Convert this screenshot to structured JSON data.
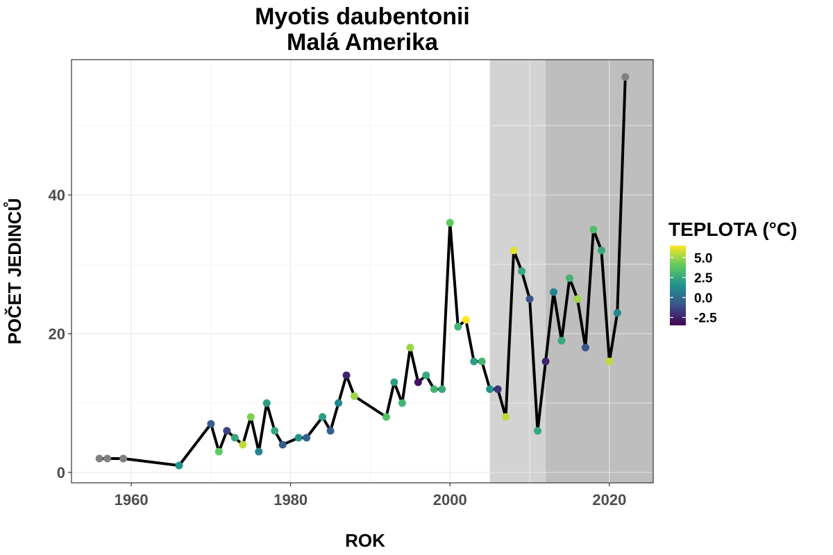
{
  "chart_data": {
    "type": "line",
    "title": "Myotis daubentonii",
    "subtitle": "Malá Amerika",
    "xlabel": "ROK",
    "ylabel": "POČET JEDINCŮ",
    "xlim": [
      1952.5,
      2025.5
    ],
    "ylim": [
      -1.5,
      59.5
    ],
    "x_ticks": [
      1960,
      1980,
      2000,
      2020
    ],
    "x_tick_labels": [
      "1960",
      "1980",
      "2000",
      "2020"
    ],
    "y_ticks": [
      0,
      20,
      40
    ],
    "y_tick_labels": [
      "0",
      "20",
      "40"
    ],
    "grid": true,
    "shaded_periods": [
      {
        "from": 2005,
        "to": 2012,
        "color": "#d3d3d3"
      },
      {
        "from": 2012,
        "to": 2025.5,
        "color": "#bebebe"
      }
    ],
    "line_color": "#000000",
    "missing_color": "#808080",
    "legend": {
      "title": "TEPLOTA (°C)",
      "placement": "right",
      "range": [
        -3.5,
        6.5
      ],
      "ticks": [
        5.0,
        2.5,
        0.0,
        -2.5
      ],
      "tick_labels": [
        "5.0",
        "2.5",
        "0.0",
        "-2.5"
      ],
      "colors": [
        "#440154",
        "#3b528b",
        "#21918c",
        "#5ec962",
        "#fde725"
      ]
    },
    "points": [
      {
        "x": 1956,
        "y": 2,
        "t": null
      },
      {
        "x": 1957,
        "y": 2,
        "t": null
      },
      {
        "x": 1959,
        "y": 2,
        "t": null
      },
      {
        "x": 1966,
        "y": 1,
        "t": 1.5
      },
      {
        "x": 1970,
        "y": 7,
        "t": -0.5
      },
      {
        "x": 1971,
        "y": 3,
        "t": 4.0
      },
      {
        "x": 1972,
        "y": 6,
        "t": -1.5
      },
      {
        "x": 1973,
        "y": 5,
        "t": 2.5
      },
      {
        "x": 1974,
        "y": 4,
        "t": 5.5
      },
      {
        "x": 1975,
        "y": 8,
        "t": 4.5
      },
      {
        "x": 1976,
        "y": 3,
        "t": 1.0
      },
      {
        "x": 1977,
        "y": 10,
        "t": 2.0
      },
      {
        "x": 1978,
        "y": 6,
        "t": 2.5
      },
      {
        "x": 1979,
        "y": 4,
        "t": -0.5
      },
      {
        "x": 1981,
        "y": 5,
        "t": 1.5
      },
      {
        "x": 1982,
        "y": 5,
        "t": -0.5
      },
      {
        "x": 1984,
        "y": 8,
        "t": 2.0
      },
      {
        "x": 1985,
        "y": 6,
        "t": -0.5
      },
      {
        "x": 1986,
        "y": 10,
        "t": 1.0
      },
      {
        "x": 1987,
        "y": 14,
        "t": -2.5
      },
      {
        "x": 1988,
        "y": 11,
        "t": 5.0
      },
      {
        "x": 1992,
        "y": 8,
        "t": 3.5
      },
      {
        "x": 1993,
        "y": 13,
        "t": 2.0
      },
      {
        "x": 1994,
        "y": 10,
        "t": 3.0
      },
      {
        "x": 1995,
        "y": 18,
        "t": 5.0
      },
      {
        "x": 1996,
        "y": 13,
        "t": -3.0
      },
      {
        "x": 1997,
        "y": 14,
        "t": 2.5
      },
      {
        "x": 1998,
        "y": 12,
        "t": 3.0
      },
      {
        "x": 1999,
        "y": 12,
        "t": 2.5
      },
      {
        "x": 2000,
        "y": 36,
        "t": 4.0
      },
      {
        "x": 2001,
        "y": 21,
        "t": 3.0
      },
      {
        "x": 2002,
        "y": 22,
        "t": 6.5
      },
      {
        "x": 2003,
        "y": 16,
        "t": 2.0
      },
      {
        "x": 2004,
        "y": 16,
        "t": 3.0
      },
      {
        "x": 2005,
        "y": 12,
        "t": 1.5
      },
      {
        "x": 2006,
        "y": 12,
        "t": -2.0
      },
      {
        "x": 2007,
        "y": 8,
        "t": 5.5
      },
      {
        "x": 2008,
        "y": 32,
        "t": 6.0
      },
      {
        "x": 2009,
        "y": 29,
        "t": 2.5
      },
      {
        "x": 2010,
        "y": 25,
        "t": -1.0
      },
      {
        "x": 2011,
        "y": 6,
        "t": 2.5
      },
      {
        "x": 2012,
        "y": 16,
        "t": -2.5
      },
      {
        "x": 2013,
        "y": 26,
        "t": 1.0
      },
      {
        "x": 2014,
        "y": 19,
        "t": 2.5
      },
      {
        "x": 2015,
        "y": 28,
        "t": 3.0
      },
      {
        "x": 2016,
        "y": 25,
        "t": 5.0
      },
      {
        "x": 2017,
        "y": 18,
        "t": -1.0
      },
      {
        "x": 2018,
        "y": 35,
        "t": 3.5
      },
      {
        "x": 2019,
        "y": 32,
        "t": 2.5
      },
      {
        "x": 2020,
        "y": 16,
        "t": 5.5
      },
      {
        "x": 2021,
        "y": 23,
        "t": 1.0
      },
      {
        "x": 2022,
        "y": 57,
        "t": null
      }
    ]
  }
}
